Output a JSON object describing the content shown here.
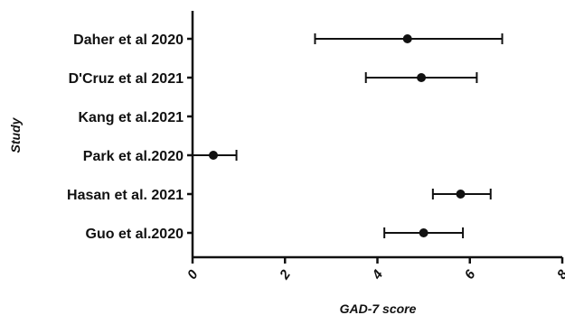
{
  "chart_data": {
    "type": "forest",
    "xlabel": "GAD-7 score",
    "ylabel": "Study",
    "xlim": [
      0,
      8
    ],
    "xticks": [
      "0",
      "2",
      "4",
      "6",
      "8"
    ],
    "studies": [
      {
        "label": "Daher et al 2020",
        "mean": 4.65,
        "lower": 2.65,
        "upper": 6.7
      },
      {
        "label": "D'Cruz et al 2021",
        "mean": 4.95,
        "lower": 3.75,
        "upper": 6.15
      },
      {
        "label": "Kang et al.2021",
        "mean": null,
        "lower": null,
        "upper": null
      },
      {
        "label": "Park et al.2020",
        "mean": 0.45,
        "lower": 0.0,
        "upper": 0.95
      },
      {
        "label": "Hasan et al. 2021",
        "mean": 5.8,
        "lower": 5.2,
        "upper": 6.45
      },
      {
        "label": "Guo et al.2020",
        "mean": 5.0,
        "lower": 4.15,
        "upper": 5.85
      }
    ]
  }
}
